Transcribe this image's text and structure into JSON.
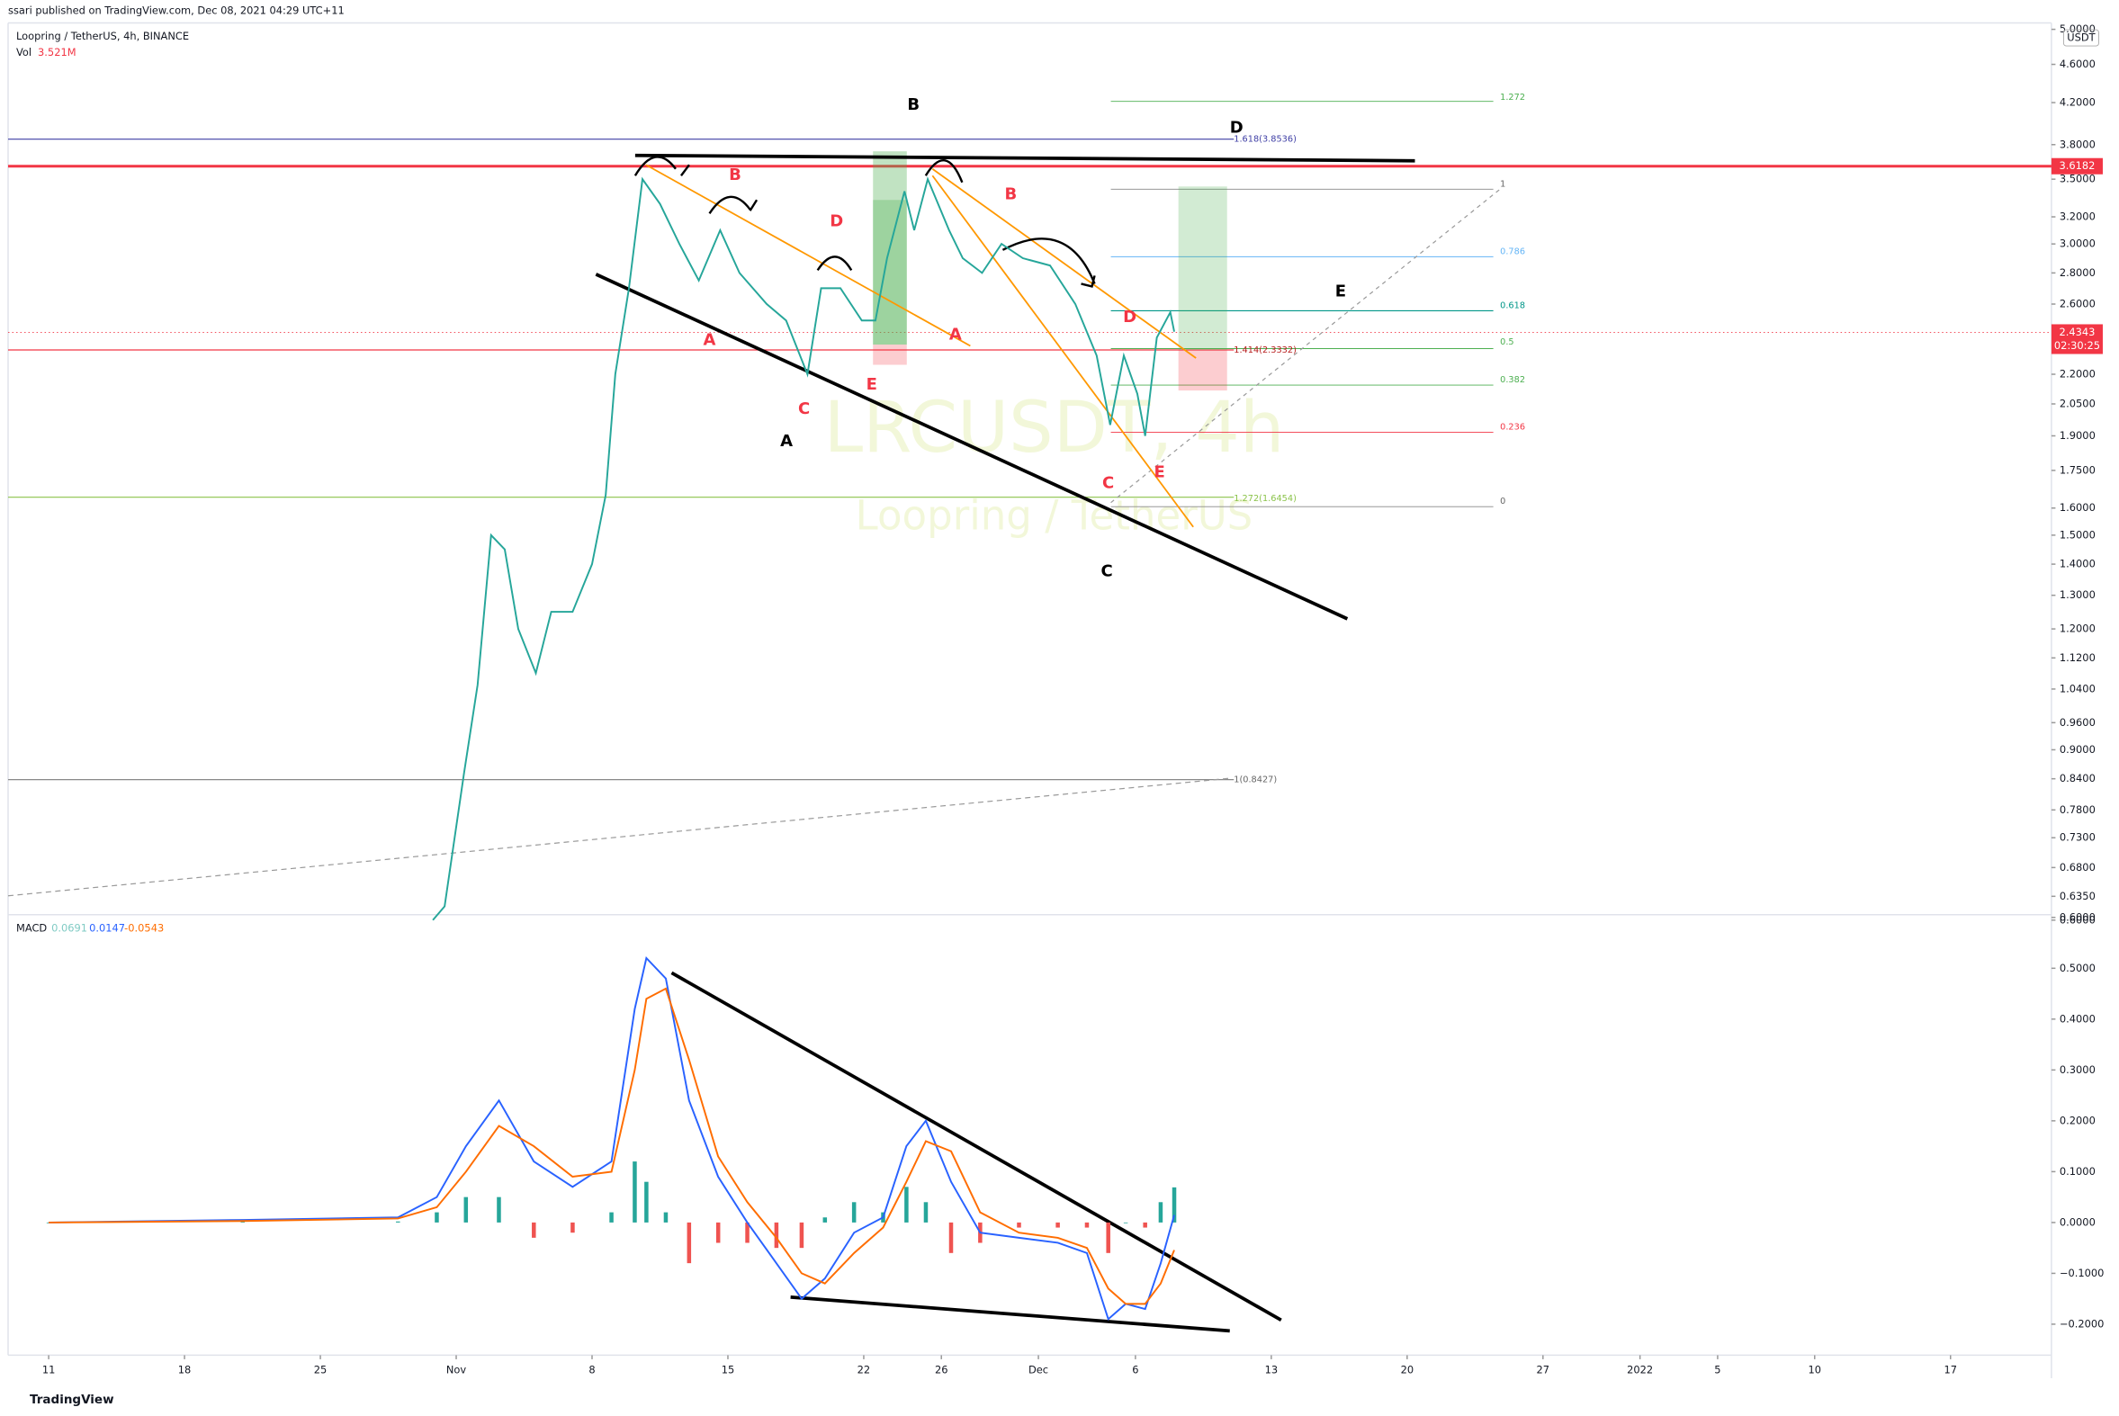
{
  "header": {
    "publisher": "ssari published on TradingView.com, Dec 08, 2021 04:29 UTC+11",
    "symbol": "Loopring / TetherUS, 4h, BINANCE",
    "volume_label": "Vol",
    "volume_value": "3.521M",
    "currency": "USDT",
    "watermark": "LRCUSDT, 4h",
    "watermark_sub": "Loopring / TetherUS"
  },
  "chart_data": [
    {
      "type": "line",
      "log_scale": true,
      "x": [
        19.8,
        20.4,
        21.4,
        22.1,
        22.8,
        23.5,
        24.2,
        25.1,
        25.9,
        27.0,
        28.0,
        28.7,
        29.2,
        29.9,
        30.6,
        31.5,
        32.5,
        33.5,
        34.6,
        35.6,
        37.0,
        38.0,
        39.1,
        39.8,
        40.8,
        41.9,
        42.6,
        43.2,
        44.1,
        44.6,
        45.3,
        46.4,
        47.1,
        48.1,
        49.1,
        50.2,
        51.6,
        52.9,
        54.0,
        54.7,
        55.4,
        56.1,
        56.5,
        57.1,
        57.8,
        58.0
      ],
      "series": [
        {
          "color": "#26a69a",
          "values": [
            0.6,
            0.62,
            0.85,
            1.05,
            1.5,
            1.45,
            1.2,
            1.08,
            1.25,
            1.25,
            1.4,
            1.65,
            2.2,
            2.7,
            3.5,
            3.3,
            3.0,
            2.75,
            3.1,
            2.8,
            2.6,
            2.5,
            2.2,
            2.7,
            2.7,
            2.5,
            2.5,
            2.9,
            3.4,
            3.1,
            3.5,
            3.1,
            2.9,
            2.8,
            3.0,
            2.9,
            2.85,
            2.6,
            2.3,
            1.95,
            2.3,
            2.1,
            1.9,
            2.4,
            2.55,
            2.4343
          ]
        }
      ],
      "xlim": [
        -2.09,
        103.2
      ],
      "xticks": [
        {
          "value": 0,
          "label": "11"
        },
        {
          "value": 7,
          "label": "18"
        },
        {
          "value": 14,
          "label": "25"
        },
        {
          "value": 21,
          "label": "Nov"
        },
        {
          "value": 28,
          "label": "8"
        },
        {
          "value": 35,
          "label": "15"
        },
        {
          "value": 42,
          "label": "22"
        },
        {
          "value": 46,
          "label": "26"
        },
        {
          "value": 51,
          "label": "Dec"
        },
        {
          "value": 56,
          "label": "6"
        },
        {
          "value": 63,
          "label": "13"
        },
        {
          "value": 70,
          "label": "20"
        },
        {
          "value": 77,
          "label": "27"
        },
        {
          "value": 82,
          "label": "2022"
        },
        {
          "value": 86,
          "label": "5"
        },
        {
          "value": 91,
          "label": "10"
        },
        {
          "value": 98,
          "label": "17"
        }
      ],
      "ylim": [
        0.6,
        5.06
      ],
      "yticks": [
        {
          "value": 5,
          "label": "5.0000"
        },
        {
          "value": 4.6,
          "label": "4.6000"
        },
        {
          "value": 4.2,
          "label": "4.2000"
        },
        {
          "value": 3.8,
          "label": "3.8000"
        },
        {
          "value": 3.5,
          "label": "3.5000"
        },
        {
          "value": 3.2,
          "label": "3.2000"
        },
        {
          "value": 3,
          "label": "3.0000"
        },
        {
          "value": 2.8,
          "label": "2.8000"
        },
        {
          "value": 2.6,
          "label": "2.6000"
        },
        {
          "value": 2.2,
          "label": "2.2000"
        },
        {
          "value": 2.05,
          "label": "2.0500"
        },
        {
          "value": 1.9,
          "label": "1.9000"
        },
        {
          "value": 1.75,
          "label": "1.7500"
        },
        {
          "value": 1.6,
          "label": "1.6000"
        },
        {
          "value": 1.5,
          "label": "1.5000"
        },
        {
          "value": 1.4,
          "label": "1.4000"
        },
        {
          "value": 1.3,
          "label": "1.3000"
        },
        {
          "value": 1.2,
          "label": "1.2000"
        },
        {
          "value": 1.12,
          "label": "1.1200"
        },
        {
          "value": 1.04,
          "label": "1.0400"
        },
        {
          "value": 0.96,
          "label": "0.9600"
        },
        {
          "value": 0.9,
          "label": "0.9000"
        },
        {
          "value": 0.84,
          "label": "0.8400"
        },
        {
          "value": 0.78,
          "label": "0.7800"
        },
        {
          "value": 0.73,
          "label": "0.7300"
        },
        {
          "value": 0.68,
          "label": "0.6800"
        },
        {
          "value": 0.635,
          "label": "0.6350"
        },
        {
          "value": 0.6,
          "label": "0.6000"
        }
      ],
      "price_tags": [
        "3.6182",
        "2.4343",
        "02:30:25"
      ],
      "annotations": [
        "B",
        "D",
        "E",
        "A",
        "C",
        "B",
        "D",
        "A",
        "C",
        "E",
        "B",
        "A",
        "D",
        "C",
        "E"
      ],
      "fib_labels": [
        "1.272",
        "1.618(3.8536)",
        "1",
        "0.786",
        "0.618",
        "0.5",
        "1.414(2.3332)",
        "0.382",
        "0.236",
        "1.272(1.6454)",
        "0",
        "1(0.8427)"
      ]
    },
    {
      "type": "line",
      "title": "MACD",
      "x": [
        0,
        10,
        18,
        20,
        21.5,
        23.2,
        25,
        27,
        29,
        30.2,
        30.8,
        31.8,
        33,
        34.5,
        36,
        37.5,
        38.8,
        40,
        41.5,
        43,
        44.2,
        45.2,
        46.5,
        48,
        50,
        52,
        53.5,
        54.6,
        55.5,
        56.5,
        57.3,
        58
      ],
      "series": [
        {
          "color": "#26a69a",
          "negative_color": "#ef5350",
          "type": "bar",
          "values": [
            0,
            0.002,
            0.002,
            0.02,
            0.05,
            0.05,
            -0.03,
            -0.02,
            0.02,
            0.12,
            0.08,
            0.02,
            -0.08,
            -0.04,
            -0.04,
            -0.05,
            -0.05,
            0.01,
            0.04,
            0.02,
            0.07,
            0.04,
            -0.06,
            -0.04,
            -0.01,
            -0.01,
            -0.01,
            -0.06,
            0.0,
            -0.01,
            0.04,
            0.0691
          ]
        },
        {
          "color": "#2962ff",
          "values": [
            0,
            0.005,
            0.01,
            0.05,
            0.15,
            0.24,
            0.12,
            0.07,
            0.12,
            0.42,
            0.52,
            0.48,
            0.24,
            0.09,
            0.0,
            -0.08,
            -0.15,
            -0.11,
            -0.02,
            0.01,
            0.15,
            0.2,
            0.08,
            -0.02,
            -0.03,
            -0.04,
            -0.06,
            -0.19,
            -0.16,
            -0.17,
            -0.08,
            0.0147
          ]
        },
        {
          "color": "#ff6d00",
          "values": [
            0,
            0.003,
            0.008,
            0.03,
            0.1,
            0.19,
            0.15,
            0.09,
            0.1,
            0.3,
            0.44,
            0.46,
            0.32,
            0.13,
            0.04,
            -0.03,
            -0.1,
            -0.12,
            -0.06,
            -0.01,
            0.08,
            0.16,
            0.14,
            0.02,
            -0.02,
            -0.03,
            -0.05,
            -0.13,
            -0.16,
            -0.16,
            -0.12,
            -0.0543
          ]
        }
      ],
      "last_values": [
        0.0691,
        0.0147,
        -0.0543
      ],
      "ylim": [
        -0.261,
        0.6
      ],
      "yticks": [
        {
          "value": 0.6,
          "label": "0.6000"
        },
        {
          "value": 0.5,
          "label": "0.5000"
        },
        {
          "value": 0.4,
          "label": "0.4000"
        },
        {
          "value": 0.3,
          "label": "0.3000"
        },
        {
          "value": 0.2,
          "label": "0.2000"
        },
        {
          "value": 0.1,
          "label": "0.1000"
        },
        {
          "value": 0,
          "label": "0.0000"
        },
        {
          "value": -0.1,
          "label": "−0.1000"
        },
        {
          "value": -0.2,
          "label": "−0.2000"
        }
      ]
    }
  ],
  "footer": {
    "brand": "TradingView"
  }
}
